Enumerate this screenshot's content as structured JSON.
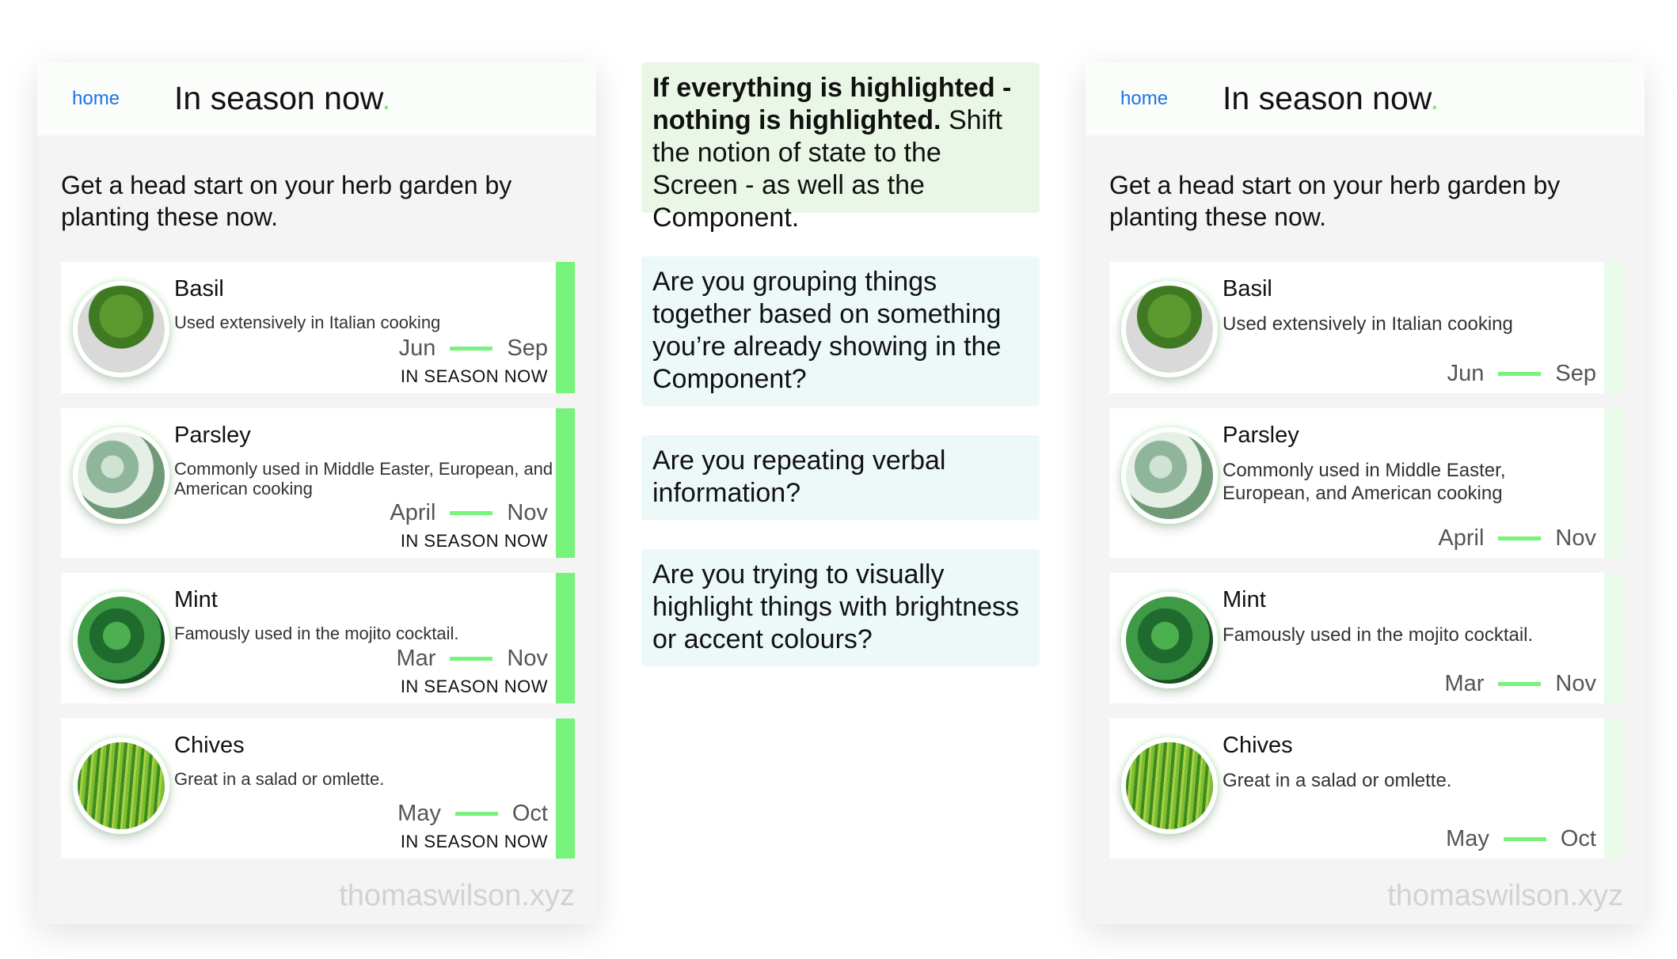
{
  "screens": [
    {
      "home_link": "home",
      "title": "In season now",
      "title_dot": ".",
      "intro": "Get a head start on your herb garden by planting these now.",
      "items": [
        {
          "name": "Basil",
          "desc": "Used extensively in Italian cooking",
          "start": "Jun",
          "end": "Sep",
          "status": "IN SEASON NOW",
          "image": "basil-image"
        },
        {
          "name": "Parsley",
          "desc": "Commonly used in Middle Easter, European, and American cooking",
          "start": "April",
          "end": "Nov",
          "status": "IN SEASON NOW",
          "image": "parsley-image"
        },
        {
          "name": "Mint",
          "desc": "Famously used in the mojito cocktail.",
          "start": "Mar",
          "end": "Nov",
          "status": "IN SEASON NOW",
          "image": "mint-image"
        },
        {
          "name": "Chives",
          "desc": "Great in a salad or omlette.",
          "start": "May",
          "end": "Oct",
          "status": "IN SEASON NOW",
          "image": "chives-image"
        }
      ],
      "watermark": "thomaswilson.xyz",
      "bar_color": "#77f27a"
    },
    {
      "home_link": "home",
      "title": "In season now",
      "title_dot": ".",
      "intro": "Get a head start on your herb garden by planting these now.",
      "items": [
        {
          "name": "Basil",
          "desc": "Used extensively in Italian cooking",
          "start": "Jun",
          "end": "Sep",
          "image": "basil-image"
        },
        {
          "name": "Parsley",
          "desc": "Commonly used in Middle Easter, European, and American cooking",
          "start": "April",
          "end": "Nov",
          "image": "parsley-image"
        },
        {
          "name": "Mint",
          "desc": "Famously used in the mojito cocktail.",
          "start": "Mar",
          "end": "Nov",
          "image": "mint-image"
        },
        {
          "name": "Chives",
          "desc": "Great in a salad or omlette.",
          "start": "May",
          "end": "Oct",
          "image": "chives-image"
        }
      ],
      "watermark": "thomaswilson.xyz",
      "bar_color": "#eafbe9"
    }
  ],
  "notes": [
    {
      "bold": "If everything is highlighted - nothing is highlighted.",
      "text": " Shift the notion of state to the Screen - as well as the Component.",
      "bg": "#eaf7e6"
    },
    {
      "bold": "",
      "text": "Are you grouping things together based on something you’re already showing in the Component?",
      "bg": "#edf8f8"
    },
    {
      "bold": "",
      "text": "Are you repeating verbal information?",
      "bg": "#edf8f8"
    },
    {
      "bold": "",
      "text": "Are you trying to visually highlight things with brightness or accent colours?",
      "bg": "#edf8f8"
    }
  ],
  "colors": {
    "accent": "#77f27a",
    "link": "#1a73e8"
  }
}
